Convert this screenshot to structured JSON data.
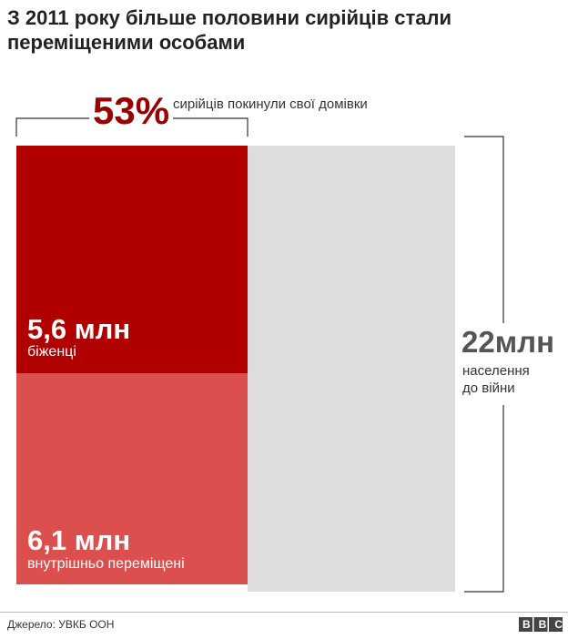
{
  "title": "З 2011 року більше половини сирійців стали переміщеними особами",
  "share": {
    "value": "53%",
    "label": "сирійців покинули свої домівки"
  },
  "refugees": {
    "value": "5,6 млн",
    "label": "біженці"
  },
  "displaced": {
    "value": "6,1 млн",
    "label": "внутрішньо переміщені"
  },
  "population": {
    "value": "22млн",
    "label": "населення до війни"
  },
  "source": "Джерело: УВКБ ООН",
  "logo": "BBC"
}
